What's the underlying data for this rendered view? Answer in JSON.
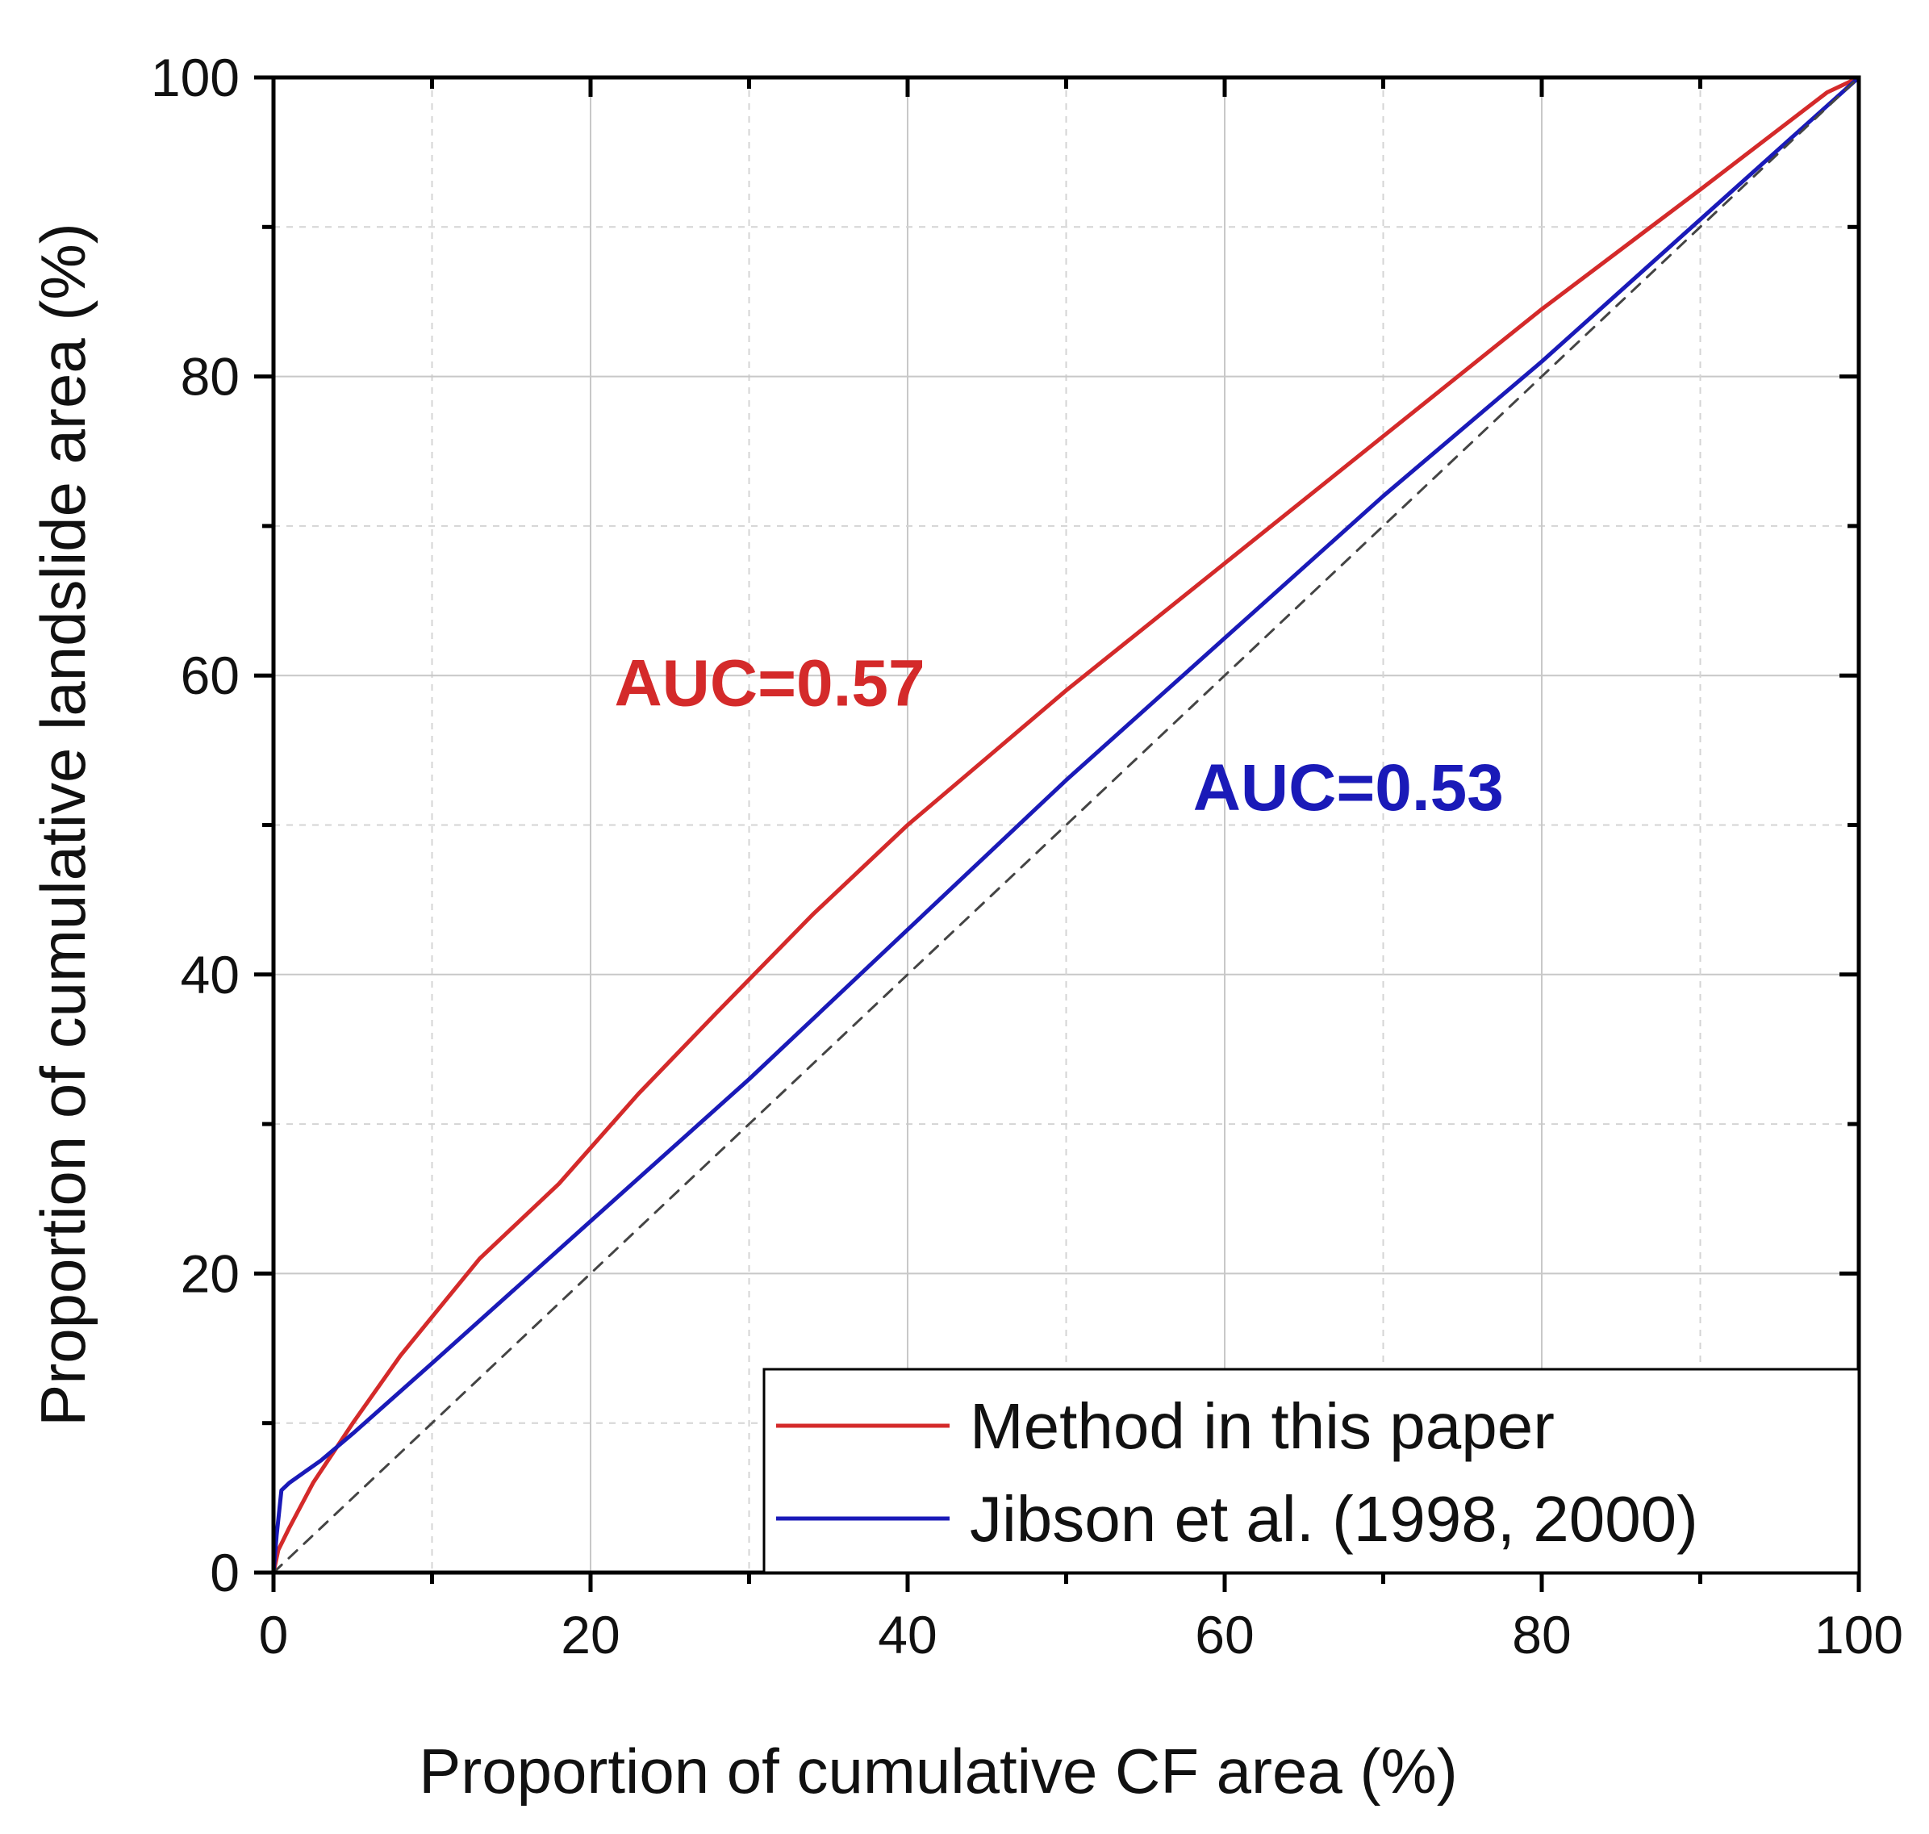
{
  "chart_data": {
    "type": "line",
    "title": "",
    "xlabel": "Proportion of cumulative CF area (%)",
    "ylabel": "Proportion of cumulative landslide area (%)",
    "xlim": [
      0,
      100
    ],
    "ylim": [
      0,
      100
    ],
    "x_ticks": [
      "0",
      "20",
      "40",
      "60",
      "80",
      "100"
    ],
    "y_ticks": [
      "0",
      "20",
      "40",
      "60",
      "80",
      "100"
    ],
    "grid": true,
    "legend_position": "bottom-right",
    "series": [
      {
        "name": "Method in this paper",
        "color": "#d42a2a",
        "points": [
          [
            0,
            0
          ],
          [
            0.3,
            1.5
          ],
          [
            1,
            3
          ],
          [
            2.5,
            6
          ],
          [
            5,
            10
          ],
          [
            8,
            14.5
          ],
          [
            13,
            21
          ],
          [
            18,
            26
          ],
          [
            23,
            32
          ],
          [
            28,
            37.5
          ],
          [
            34,
            44
          ],
          [
            40,
            50
          ],
          [
            45,
            54.5
          ],
          [
            50,
            59
          ],
          [
            60,
            67.5
          ],
          [
            70,
            76
          ],
          [
            80,
            84.5
          ],
          [
            90,
            92.5
          ],
          [
            98,
            99
          ],
          [
            100,
            100
          ]
        ]
      },
      {
        "name": "Jibson et al. (1998, 2000)",
        "color": "#1a1ab8",
        "points": [
          [
            0,
            0
          ],
          [
            0.2,
            2.5
          ],
          [
            0.5,
            5.5
          ],
          [
            1,
            6
          ],
          [
            3,
            7.5
          ],
          [
            5,
            9.3
          ],
          [
            10,
            14
          ],
          [
            20,
            23.5
          ],
          [
            30,
            33
          ],
          [
            40,
            43
          ],
          [
            50,
            53
          ],
          [
            60,
            62.5
          ],
          [
            70,
            72
          ],
          [
            80,
            81
          ],
          [
            90,
            90.5
          ],
          [
            100,
            100
          ]
        ]
      },
      {
        "name": "",
        "style": "dashed",
        "color": "#444444",
        "points": [
          [
            0,
            0
          ],
          [
            100,
            100
          ]
        ]
      }
    ],
    "annotations": [
      {
        "text": "AUC=0.57",
        "x": 21.5,
        "y": 58,
        "color": "#d42a2a"
      },
      {
        "text": "AUC=0.53",
        "x": 58,
        "y": 51,
        "color": "#1a1ab8"
      }
    ]
  }
}
